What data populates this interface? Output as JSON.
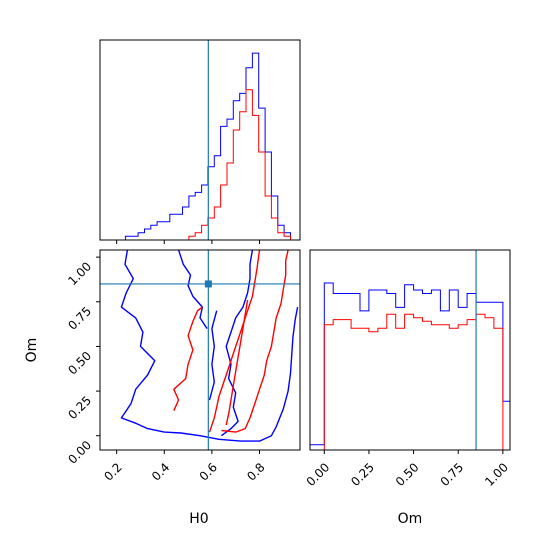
{
  "chart_data": [
    {
      "panel": "hist-H0",
      "type": "step-histogram",
      "xlim": [
        0.13,
        0.97
      ],
      "x_bin_edges": [
        0.13,
        0.1567,
        0.1833,
        0.21,
        0.2367,
        0.2633,
        0.29,
        0.3167,
        0.3433,
        0.37,
        0.3967,
        0.4233,
        0.45,
        0.4767,
        0.5033,
        0.53,
        0.5567,
        0.5833,
        0.61,
        0.6367,
        0.6633,
        0.69,
        0.7167,
        0.7433,
        0.77,
        0.7967,
        0.8233,
        0.85,
        0.8767,
        0.9033,
        0.93,
        0.97
      ],
      "series": [
        {
          "color": "#0000ff",
          "values": [
            0,
            0,
            0,
            0,
            1,
            1,
            2,
            3,
            4,
            5,
            5,
            7,
            7,
            9,
            12,
            13,
            15,
            20,
            23,
            31,
            33,
            38,
            40,
            47,
            51,
            36,
            24,
            12,
            4,
            2,
            0
          ]
        },
        {
          "color": "#ff0000",
          "values": [
            0,
            0,
            0,
            0,
            0,
            0,
            0,
            0,
            0,
            0,
            0,
            0,
            0,
            0,
            1,
            2,
            4,
            6,
            9,
            15,
            21,
            30,
            35,
            41,
            34,
            24,
            12,
            6,
            2,
            1,
            0
          ]
        }
      ],
      "truth_line": {
        "x": 0.585,
        "color": "#1f77b4"
      }
    },
    {
      "panel": "contour-H0-Om",
      "type": "contour",
      "xlabel": "H0",
      "ylabel": "Om",
      "xlim": [
        0.13,
        0.97
      ],
      "ylim": [
        -0.08,
        1.04
      ],
      "xticks": [
        "0.2",
        "0.4",
        "0.6",
        "0.8"
      ],
      "yticks": [
        "0.00",
        "0.25",
        "0.50",
        "0.75",
        "1.00"
      ],
      "truth_point": {
        "x": 0.585,
        "y": 0.85,
        "color": "#1f77b4"
      },
      "contours": [
        {
          "color": "#0000ff",
          "points": [
            [
              0.245,
              1.04
            ],
            [
              0.235,
              0.96
            ],
            [
              0.27,
              0.88
            ],
            [
              0.24,
              0.8
            ],
            [
              0.22,
              0.72
            ],
            [
              0.28,
              0.66
            ],
            [
              0.31,
              0.58
            ],
            [
              0.3,
              0.5
            ],
            [
              0.36,
              0.42
            ],
            [
              0.33,
              0.34
            ],
            [
              0.28,
              0.26
            ],
            [
              0.26,
              0.18
            ],
            [
              0.22,
              0.1
            ],
            [
              0.28,
              0.07
            ],
            [
              0.33,
              0.04
            ],
            [
              0.4,
              0.02
            ],
            [
              0.47,
              0.015
            ],
            [
              0.55,
              0.0
            ],
            [
              0.63,
              -0.02
            ],
            [
              0.72,
              -0.03
            ],
            [
              0.8,
              -0.03
            ],
            [
              0.85,
              0.0
            ],
            [
              0.87,
              0.05
            ],
            [
              0.9,
              0.15
            ],
            [
              0.92,
              0.25
            ],
            [
              0.93,
              0.35
            ],
            [
              0.935,
              0.45
            ],
            [
              0.94,
              0.55
            ],
            [
              0.95,
              0.65
            ],
            [
              0.96,
              0.72
            ]
          ]
        },
        {
          "color": "#0000ff",
          "points": [
            [
              0.64,
              0.0
            ],
            [
              0.68,
              0.04
            ],
            [
              0.71,
              0.08
            ],
            [
              0.69,
              0.16
            ],
            [
              0.7,
              0.24
            ],
            [
              0.67,
              0.32
            ],
            [
              0.68,
              0.4
            ],
            [
              0.66,
              0.5
            ],
            [
              0.68,
              0.58
            ],
            [
              0.7,
              0.66
            ],
            [
              0.73,
              0.72
            ],
            [
              0.75,
              0.8
            ],
            [
              0.76,
              0.88
            ],
            [
              0.76,
              0.96
            ],
            [
              0.77,
              1.04
            ]
          ]
        },
        {
          "color": "#0000ff",
          "points": [
            [
              0.46,
              1.04
            ],
            [
              0.48,
              0.96
            ],
            [
              0.51,
              0.9
            ],
            [
              0.5,
              0.84
            ],
            [
              0.52,
              0.78
            ],
            [
              0.56,
              0.72
            ],
            [
              0.55,
              0.66
            ],
            [
              0.58,
              0.6
            ]
          ]
        },
        {
          "color": "#0000ff",
          "points": [
            [
              0.59,
              0.2
            ],
            [
              0.61,
              0.3
            ],
            [
              0.6,
              0.4
            ],
            [
              0.61,
              0.5
            ],
            [
              0.6,
              0.6
            ],
            [
              0.62,
              0.7
            ]
          ]
        },
        {
          "color": "#ff0000",
          "points": [
            [
              0.44,
              0.14
            ],
            [
              0.46,
              0.2
            ],
            [
              0.44,
              0.26
            ],
            [
              0.49,
              0.32
            ],
            [
              0.5,
              0.4
            ],
            [
              0.52,
              0.48
            ],
            [
              0.5,
              0.56
            ],
            [
              0.52,
              0.64
            ],
            [
              0.54,
              0.7
            ],
            [
              0.56,
              0.72
            ]
          ]
        },
        {
          "color": "#ff0000",
          "points": [
            [
              0.59,
              0.02
            ],
            [
              0.6,
              0.06
            ],
            [
              0.61,
              0.1
            ],
            [
              0.62,
              0.16
            ],
            [
              0.63,
              0.22
            ],
            [
              0.65,
              0.3
            ],
            [
              0.67,
              0.38
            ],
            [
              0.69,
              0.46
            ],
            [
              0.71,
              0.54
            ],
            [
              0.73,
              0.62
            ],
            [
              0.75,
              0.7
            ],
            [
              0.77,
              0.78
            ],
            [
              0.78,
              0.86
            ],
            [
              0.79,
              0.94
            ],
            [
              0.8,
              1.04
            ]
          ]
        },
        {
          "color": "#ff0000",
          "points": [
            [
              0.64,
              0.03
            ],
            [
              0.7,
              0.02
            ],
            [
              0.74,
              0.04
            ],
            [
              0.76,
              0.1
            ],
            [
              0.78,
              0.18
            ],
            [
              0.8,
              0.26
            ],
            [
              0.82,
              0.34
            ],
            [
              0.83,
              0.42
            ],
            [
              0.85,
              0.5
            ],
            [
              0.86,
              0.58
            ],
            [
              0.87,
              0.66
            ],
            [
              0.89,
              0.74
            ],
            [
              0.9,
              0.82
            ],
            [
              0.91,
              0.9
            ],
            [
              0.91,
              0.98
            ],
            [
              0.92,
              1.04
            ]
          ]
        },
        {
          "color": "#ff0000",
          "points": [
            [
              0.66,
              0.06
            ],
            [
              0.67,
              0.12
            ],
            [
              0.68,
              0.2
            ],
            [
              0.69,
              0.28
            ],
            [
              0.7,
              0.36
            ],
            [
              0.71,
              0.44
            ],
            [
              0.72,
              0.52
            ],
            [
              0.73,
              0.6
            ],
            [
              0.74,
              0.68
            ],
            [
              0.75,
              0.76
            ]
          ]
        }
      ]
    },
    {
      "panel": "hist-Om",
      "type": "step-histogram",
      "xlabel": "Om",
      "xlim": [
        -0.08,
        1.04
      ],
      "xticks": [
        "0.00",
        "0.25",
        "0.50",
        "0.75",
        "1.00"
      ],
      "x_bin_edges": [
        -0.08,
        -0.0,
        0.05,
        0.1,
        0.15,
        0.2,
        0.25,
        0.3,
        0.35,
        0.4,
        0.45,
        0.5,
        0.55,
        0.6,
        0.65,
        0.7,
        0.75,
        0.8,
        0.85,
        0.9,
        0.95,
        1.0,
        1.04
      ],
      "series": [
        {
          "color": "#0000ff",
          "values": [
            0.03,
            0.96,
            0.9,
            0.9,
            0.9,
            0.8,
            0.92,
            0.92,
            0.9,
            0.82,
            0.95,
            0.92,
            0.9,
            0.92,
            0.8,
            0.92,
            0.82,
            0.9,
            0.85,
            0.85,
            0.85,
            0.28
          ]
        },
        {
          "color": "#ff0000",
          "values": [
            0.0,
            0.72,
            0.75,
            0.75,
            0.7,
            0.7,
            0.68,
            0.7,
            0.78,
            0.7,
            0.78,
            0.76,
            0.74,
            0.72,
            0.72,
            0.7,
            0.72,
            0.75,
            0.78,
            0.76,
            0.7,
            0.0
          ]
        }
      ],
      "truth_line": {
        "x": 0.85,
        "color": "#1f77b4"
      }
    }
  ]
}
